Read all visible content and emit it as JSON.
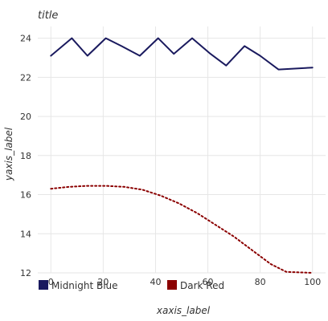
{
  "chart_data": {
    "type": "line",
    "title": "title",
    "xlabel": "xaxis_label",
    "ylabel": "yaxis_label",
    "xlim": [
      -5,
      105
    ],
    "ylim": [
      12,
      24.6
    ],
    "x_ticks": [
      0,
      20,
      40,
      60,
      80,
      100
    ],
    "y_ticks": [
      12,
      14,
      16,
      18,
      20,
      22,
      24
    ],
    "grid": true,
    "legend_position": "bottom",
    "series": [
      {
        "name": "Midnight Blue",
        "color": "#1a1a5e",
        "style": "solid",
        "x": [
          0,
          8,
          14,
          21,
          27,
          34,
          41,
          47,
          54,
          61,
          67,
          74,
          80,
          87,
          100
        ],
        "y": [
          23.1,
          24.0,
          23.1,
          24.0,
          23.6,
          23.1,
          24.0,
          23.2,
          24.0,
          23.2,
          22.6,
          23.6,
          23.1,
          22.4,
          22.5
        ]
      },
      {
        "name": "Dark Red",
        "color": "#8b0000",
        "style": "dotted",
        "x": [
          0,
          7,
          14,
          21,
          28,
          35,
          42,
          49,
          56,
          63,
          70,
          77,
          84,
          90,
          100
        ],
        "y": [
          16.3,
          16.4,
          16.45,
          16.45,
          16.4,
          16.25,
          15.95,
          15.55,
          15.05,
          14.45,
          13.85,
          13.15,
          12.45,
          12.05,
          12.0
        ]
      }
    ]
  }
}
